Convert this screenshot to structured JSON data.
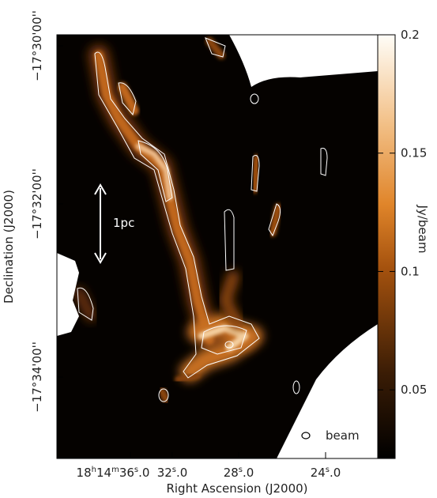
{
  "x_axis": {
    "label": "Right Ascension (J2000)",
    "ticks": [
      [
        "18",
        "h",
        "14",
        "m",
        "36",
        "s",
        ".0"
      ],
      [
        "32",
        "s",
        ".0"
      ],
      [
        "28",
        "s",
        ".0"
      ],
      [
        "24",
        "s",
        ".0"
      ]
    ]
  },
  "y_axis": {
    "label": "Declination (J2000)",
    "ticks": [
      "−17°30'00''",
      "−17°32'00''",
      "−17°34'00''"
    ]
  },
  "colorbar": {
    "label": "Jy/beam",
    "lim": [
      0.021,
      0.2
    ],
    "ticks": [
      0.05,
      0.1,
      0.15,
      0.2
    ]
  },
  "annotations": {
    "scale": "1pc",
    "beam": "beam"
  }
}
